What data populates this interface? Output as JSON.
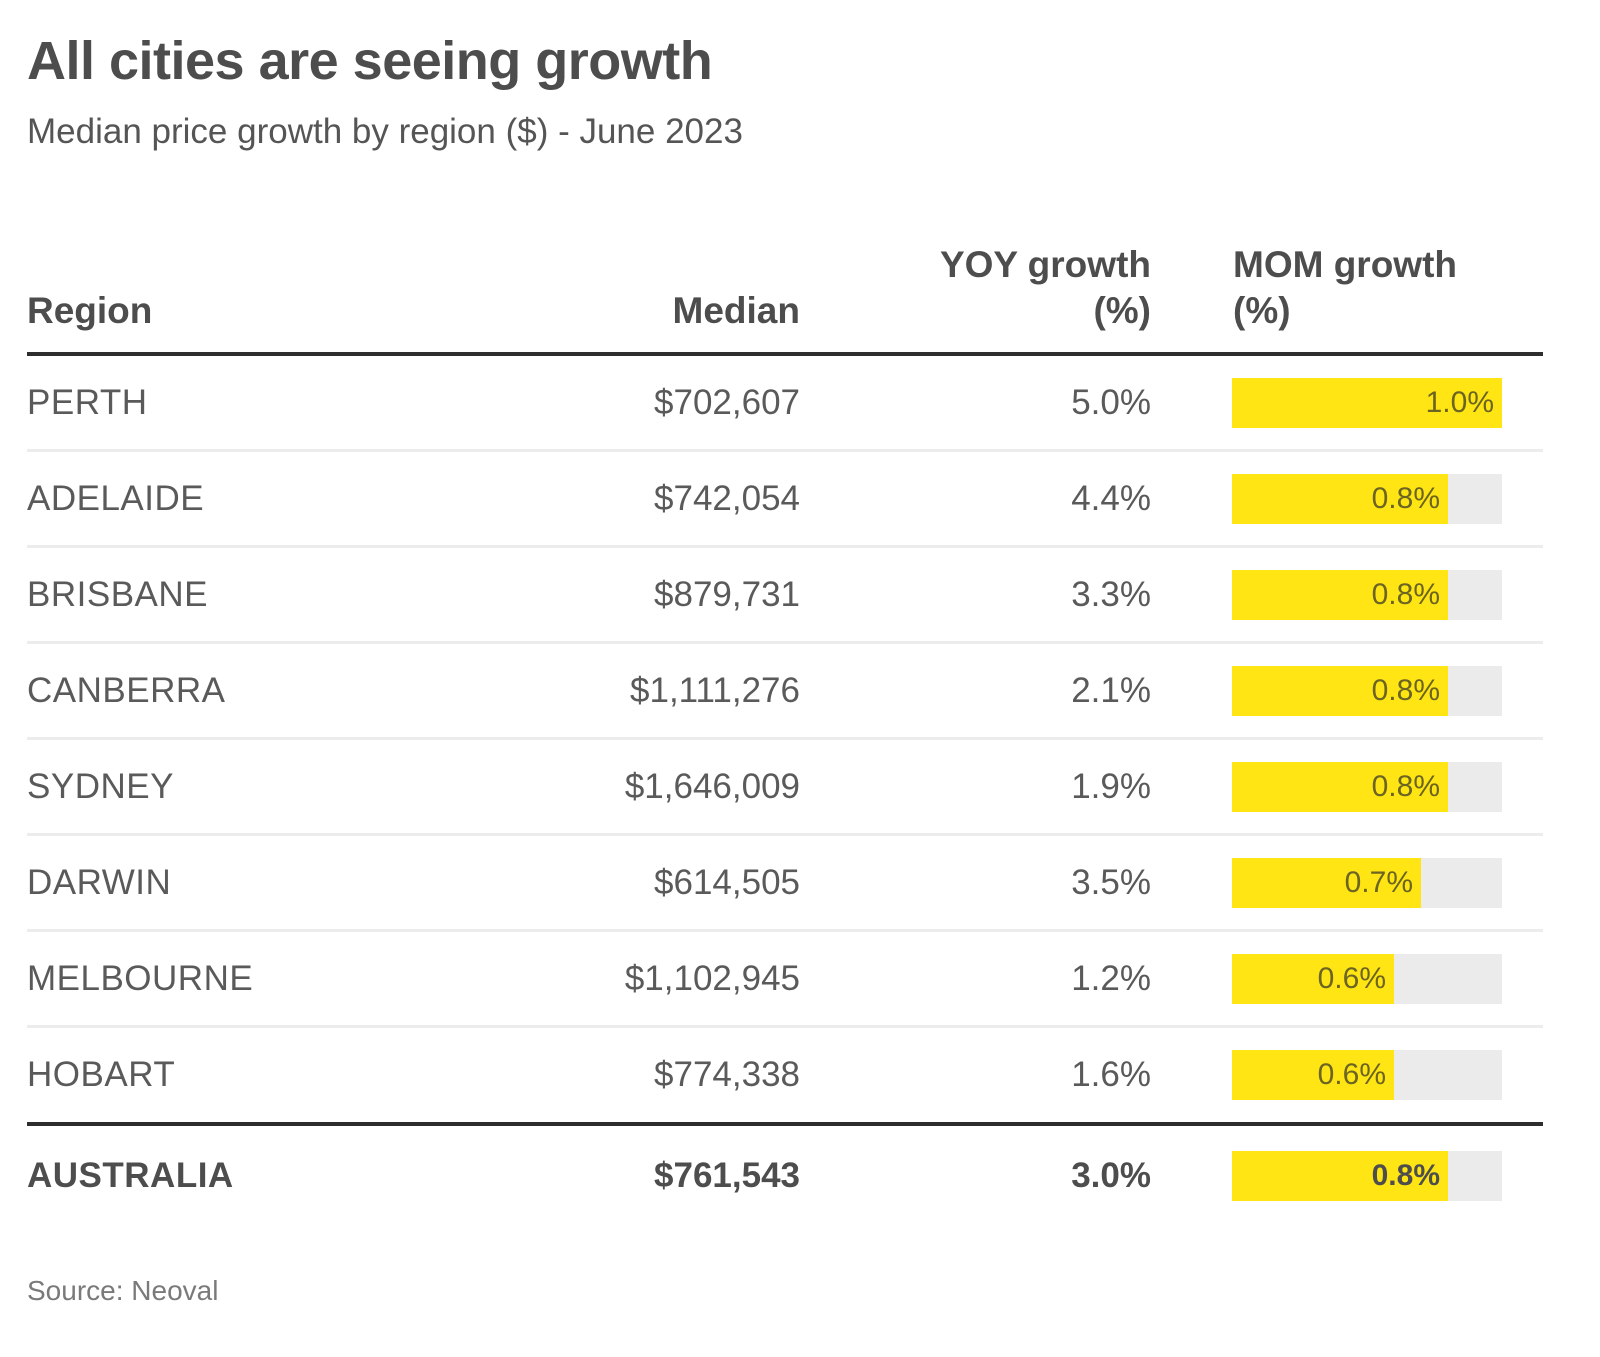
{
  "header": {
    "title": "All cities are seeing growth",
    "subtitle": "Median price growth by region ($) - June 2023"
  },
  "colors": {
    "bar_fill": "#ffe513",
    "bar_track": "#ebebeb",
    "rule": "#2e2e2e",
    "divider": "#ececec",
    "text": "#4d4d4d"
  },
  "footer": {
    "source": "Source: Neoval"
  },
  "chart_data": {
    "type": "table",
    "title": "All cities are seeing growth",
    "subtitle": "Median price growth by region ($) - June 2023",
    "columns": {
      "region": "Region",
      "median": "Median",
      "yoy_line1": "YOY growth",
      "yoy_line2": "(%)",
      "mom_line1": "MOM growth",
      "mom_line2": "(%)"
    },
    "mom_bar_max": 1.0,
    "rows": [
      {
        "region": "PERTH",
        "median": "$702,607",
        "yoy": "5.0%",
        "mom": 1.0,
        "mom_label": "1.0%"
      },
      {
        "region": "ADELAIDE",
        "median": "$742,054",
        "yoy": "4.4%",
        "mom": 0.8,
        "mom_label": "0.8%"
      },
      {
        "region": "BRISBANE",
        "median": "$879,731",
        "yoy": "3.3%",
        "mom": 0.8,
        "mom_label": "0.8%"
      },
      {
        "region": "CANBERRA",
        "median": "$1,111,276",
        "yoy": "2.1%",
        "mom": 0.8,
        "mom_label": "0.8%"
      },
      {
        "region": "SYDNEY",
        "median": "$1,646,009",
        "yoy": "1.9%",
        "mom": 0.8,
        "mom_label": "0.8%"
      },
      {
        "region": "DARWIN",
        "median": "$614,505",
        "yoy": "3.5%",
        "mom": 0.7,
        "mom_label": "0.7%"
      },
      {
        "region": "MELBOURNE",
        "median": "$1,102,945",
        "yoy": "1.2%",
        "mom": 0.6,
        "mom_label": "0.6%"
      },
      {
        "region": "HOBART",
        "median": "$774,338",
        "yoy": "1.6%",
        "mom": 0.6,
        "mom_label": "0.6%"
      }
    ],
    "total": {
      "region": "AUSTRALIA",
      "median": "$761,543",
      "yoy": "3.0%",
      "mom": 0.8,
      "mom_label": "0.8%"
    },
    "source": "Source: Neoval"
  }
}
